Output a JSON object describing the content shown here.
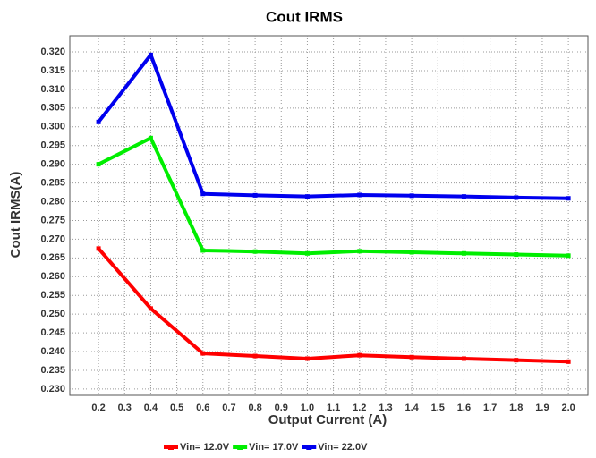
{
  "chart_data": {
    "type": "line",
    "title": "Cout IRMS",
    "x_label": "Output Current (A)",
    "y_label": "Cout IRMS(A)",
    "x": [
      0.2,
      0.4,
      0.6,
      0.8,
      1.0,
      1.2,
      1.4,
      1.6,
      1.8,
      2.0
    ],
    "series": [
      {
        "name": "Vin= 12.0V",
        "color": "#ff0000",
        "values": [
          0.2675,
          0.2515,
          0.2395,
          0.2388,
          0.2381,
          0.239,
          0.2385,
          0.2381,
          0.2377,
          0.2373
        ]
      },
      {
        "name": "Vin= 17.0V",
        "color": "#00ee00",
        "values": [
          0.29,
          0.297,
          0.267,
          0.2667,
          0.2662,
          0.2668,
          0.2665,
          0.2662,
          0.2659,
          0.2656
        ]
      },
      {
        "name": "Vin= 22.0V",
        "color": "#0000ee",
        "values": [
          0.3013,
          0.3192,
          0.2821,
          0.2817,
          0.2814,
          0.2818,
          0.2816,
          0.2814,
          0.2811,
          0.2809
        ]
      }
    ],
    "xlim": [
      0.09,
      2.075
    ],
    "xticks": [
      0.2,
      0.3,
      0.4,
      0.5,
      0.6,
      0.7,
      0.8,
      0.9,
      {
        "value": 1.0,
        "label": "1.0"
      },
      1.1,
      1.2,
      1.3,
      1.4,
      1.5,
      1.6,
      1.7,
      1.8,
      1.9,
      {
        "value": 2.0,
        "label": "2.0"
      }
    ],
    "ylim": [
      0.2283,
      0.3243
    ],
    "yticks": [
      {
        "value": 0.23,
        "label": "0.230"
      },
      0.235,
      {
        "value": 0.24,
        "label": "0.240"
      },
      0.245,
      {
        "value": 0.25,
        "label": "0.250"
      },
      0.255,
      {
        "value": 0.26,
        "label": "0.260"
      },
      0.265,
      {
        "value": 0.27,
        "label": "0.270"
      },
      0.275,
      {
        "value": 0.28,
        "label": "0.280"
      },
      0.285,
      {
        "value": 0.29,
        "label": "0.290"
      },
      0.295,
      {
        "value": 0.3,
        "label": "0.300"
      },
      0.305,
      {
        "value": 0.31,
        "label": "0.310"
      },
      0.315,
      {
        "value": 0.32,
        "label": "0.320"
      }
    ],
    "grid": true,
    "legend": "bottom"
  }
}
